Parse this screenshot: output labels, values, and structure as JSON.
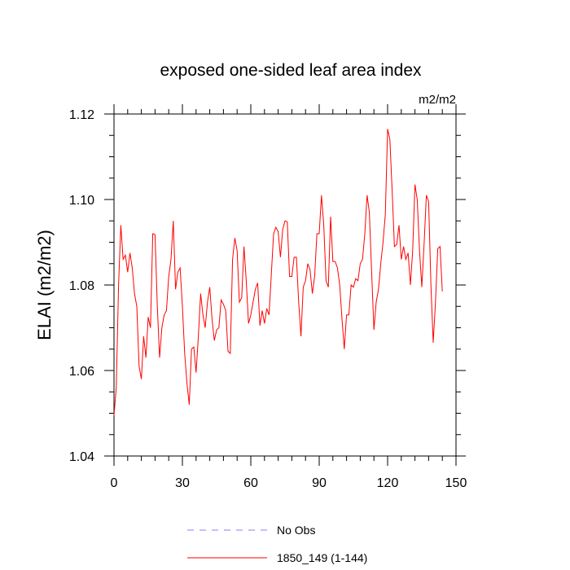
{
  "chart_data": {
    "type": "line",
    "title": "exposed one-sided leaf area index",
    "units_label": "m2/m2",
    "xlabel": "",
    "ylabel": "ELAI  (m2/m2)",
    "xlim": [
      0,
      150
    ],
    "ylim": [
      1.04,
      1.12
    ],
    "x_ticks": [
      0,
      30,
      60,
      90,
      120,
      150
    ],
    "y_ticks": [
      1.04,
      1.06,
      1.08,
      1.1,
      1.12
    ],
    "x_tick_labels": [
      "0",
      "30",
      "60",
      "90",
      "120",
      "150"
    ],
    "y_tick_labels": [
      "1.04",
      "1.06",
      "1.08",
      "1.10",
      "1.12"
    ],
    "series": [
      {
        "name": "1850_149 (1-144)",
        "color": "#ff0000",
        "dash": "solid",
        "x_start": 0,
        "values": [
          1.0495,
          1.056,
          1.08,
          1.094,
          1.086,
          1.087,
          1.083,
          1.0875,
          1.084,
          1.078,
          1.075,
          1.061,
          1.058,
          1.068,
          1.063,
          1.0725,
          1.07,
          1.092,
          1.0918,
          1.075,
          1.063,
          1.07,
          1.073,
          1.074,
          1.082,
          1.086,
          1.095,
          1.079,
          1.083,
          1.084,
          1.075,
          1.064,
          1.057,
          1.052,
          1.065,
          1.0655,
          1.0595,
          1.068,
          1.078,
          1.073,
          1.07,
          1.076,
          1.0795,
          1.072,
          1.067,
          1.0695,
          1.07,
          1.0765,
          1.0755,
          1.074,
          1.0645,
          1.064,
          1.086,
          1.091,
          1.088,
          1.076,
          1.077,
          1.089,
          1.081,
          1.071,
          1.073,
          1.076,
          1.079,
          1.0805,
          1.0705,
          1.074,
          1.071,
          1.0745,
          1.073,
          1.0825,
          1.092,
          1.0935,
          1.0925,
          1.0865,
          1.093,
          1.095,
          1.0948,
          1.082,
          1.082,
          1.0865,
          1.0865,
          1.076,
          1.068,
          1.0795,
          1.081,
          1.085,
          1.0835,
          1.078,
          1.082,
          1.092,
          1.092,
          1.101,
          1.094,
          1.081,
          1.0795,
          1.096,
          1.0855,
          1.0855,
          1.084,
          1.08,
          1.072,
          1.065,
          1.073,
          1.073,
          1.08,
          1.0795,
          1.0815,
          1.081,
          1.085,
          1.086,
          1.092,
          1.101,
          1.097,
          1.083,
          1.0695,
          1.076,
          1.079,
          1.085,
          1.09,
          1.0965,
          1.1165,
          1.114,
          1.102,
          1.089,
          1.0895,
          1.094,
          1.086,
          1.089,
          1.086,
          1.0875,
          1.08,
          1.088,
          1.1035,
          1.1,
          1.088,
          1.0795,
          1.0895,
          1.101,
          1.0995,
          1.08,
          1.0665,
          1.076,
          1.0885,
          1.089,
          1.0785
        ]
      },
      {
        "name": "No Obs",
        "color": "#8080ff",
        "dash": "dashed",
        "values": []
      }
    ],
    "legend": {
      "placement": "bottom-center",
      "entries": [
        {
          "label": "No Obs",
          "color": "#8080ff",
          "dash": "dashed"
        },
        {
          "label": "1850_149 (1-144)",
          "color": "#ff0000",
          "dash": "solid"
        }
      ]
    }
  }
}
